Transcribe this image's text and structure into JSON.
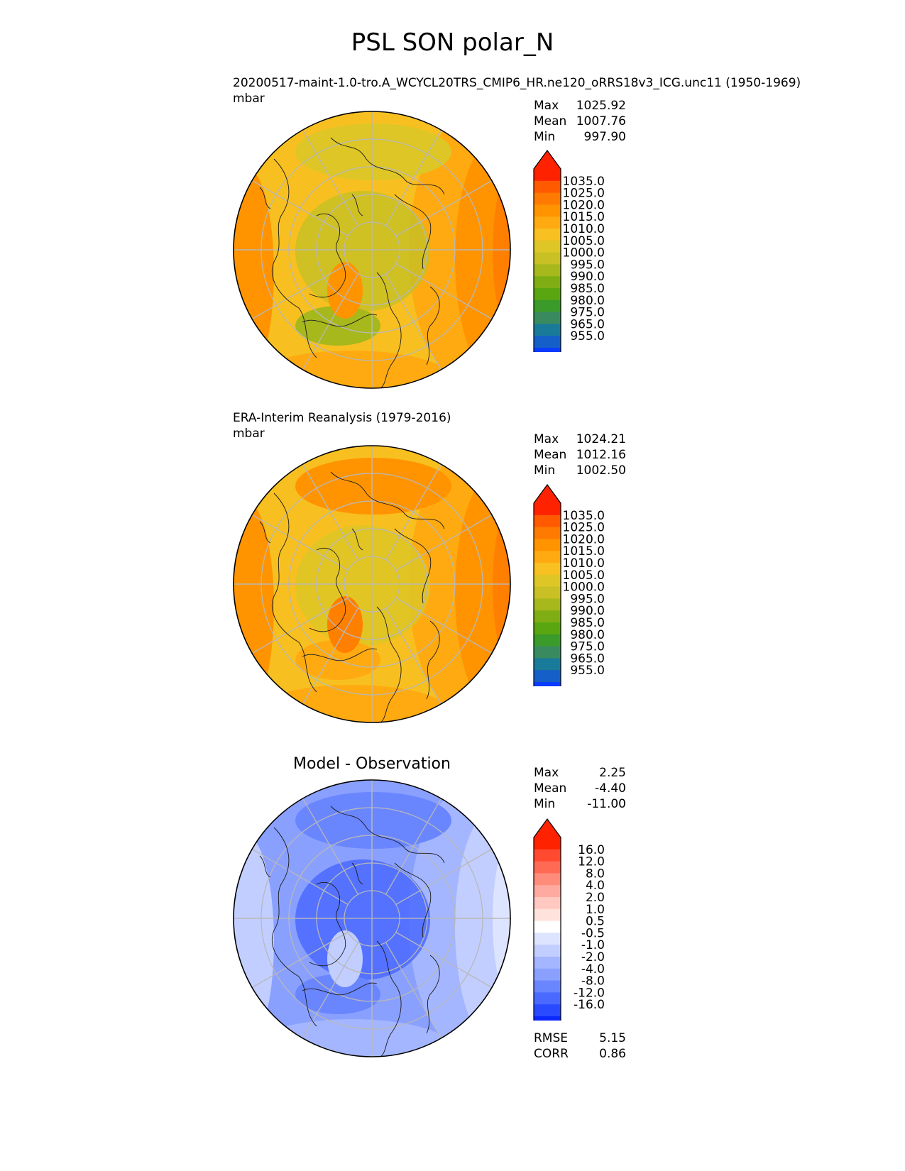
{
  "title": "PSL SON polar_N",
  "panels": [
    {
      "id": "model",
      "caption": "20200517-maint-1.0-tro.A_WCYCL20TRS_CMIP6_HR.ne120_oRRS18v3_ICG.unc11 (1950-1969)",
      "units": "mbar",
      "stats": [
        {
          "label": "Max",
          "value": "1025.92"
        },
        {
          "label": "Mean",
          "value": "1007.76"
        },
        {
          "label": "Min",
          "value": "997.90"
        }
      ]
    },
    {
      "id": "obs",
      "caption": "ERA-Interim Reanalysis (1979-2016)",
      "units": "mbar",
      "stats": [
        {
          "label": "Max",
          "value": "1024.21"
        },
        {
          "label": "Mean",
          "value": "1012.16"
        },
        {
          "label": "Min",
          "value": "1002.50"
        }
      ]
    },
    {
      "id": "diff",
      "title": "Model - Observation",
      "stats": [
        {
          "label": "Max",
          "value": "2.25"
        },
        {
          "label": "Mean",
          "value": "-4.40"
        },
        {
          "label": "Min",
          "value": "-11.00"
        }
      ],
      "extra_stats": [
        {
          "label": "RMSE",
          "value": "5.15"
        },
        {
          "label": "CORR",
          "value": "0.86"
        }
      ]
    }
  ],
  "colorbars": {
    "absolute": {
      "ticks": [
        "1035.0",
        "1025.0",
        "1020.0",
        "1015.0",
        "1010.0",
        "1005.0",
        "1000.0",
        "995.0",
        "990.0",
        "985.0",
        "980.0",
        "975.0",
        "965.0",
        "955.0"
      ],
      "colors": [
        "#ff2200",
        "#ff5a00",
        "#ff7a00",
        "#ff9400",
        "#ffaa10",
        "#f8c020",
        "#ddc626",
        "#c8c024",
        "#a6b81c",
        "#7fae14",
        "#5aa610",
        "#3a9a2a",
        "#3a8a60",
        "#1a7a9a",
        "#1560c8",
        "#0a3cff"
      ]
    },
    "difference": {
      "ticks": [
        "16.0",
        "12.0",
        "8.0",
        "4.0",
        "2.0",
        "1.0",
        "0.5",
        "-0.5",
        "-1.0",
        "-2.0",
        "-4.0",
        "-8.0",
        "-12.0",
        "-16.0"
      ],
      "colors": [
        "#ff2200",
        "#ff4a30",
        "#ff6a55",
        "#ff8c7a",
        "#ffaaa0",
        "#ffc8c0",
        "#ffe2dc",
        "#ffffff",
        "#dde4ff",
        "#c2ceff",
        "#a4b6ff",
        "#8aa0ff",
        "#6a86ff",
        "#4a6aff",
        "#2a4aff",
        "#0a28ff"
      ]
    }
  },
  "map_fields": {
    "model": {
      "background": "#f7c020",
      "rings": [
        "#ffaa10",
        "#ff9400",
        "#ff8000"
      ],
      "patches": [
        "#ddc626",
        "#c8c024",
        "#a6b81c",
        "#ff9400"
      ]
    },
    "obs": {
      "background": "#f7c020",
      "rings": [
        "#ffaa10",
        "#ff9400",
        "#ff8000"
      ],
      "patches": [
        "#ff9400",
        "#ddc626",
        "#ffaa10",
        "#ff8000"
      ]
    },
    "diff": {
      "background": "#8aa0ff",
      "rings": [
        "#a4b6ff",
        "#c2ceff",
        "#dde4ff"
      ],
      "patches": [
        "#6a86ff",
        "#4a6aff",
        "#6a86ff",
        "#c2ceff"
      ]
    }
  }
}
